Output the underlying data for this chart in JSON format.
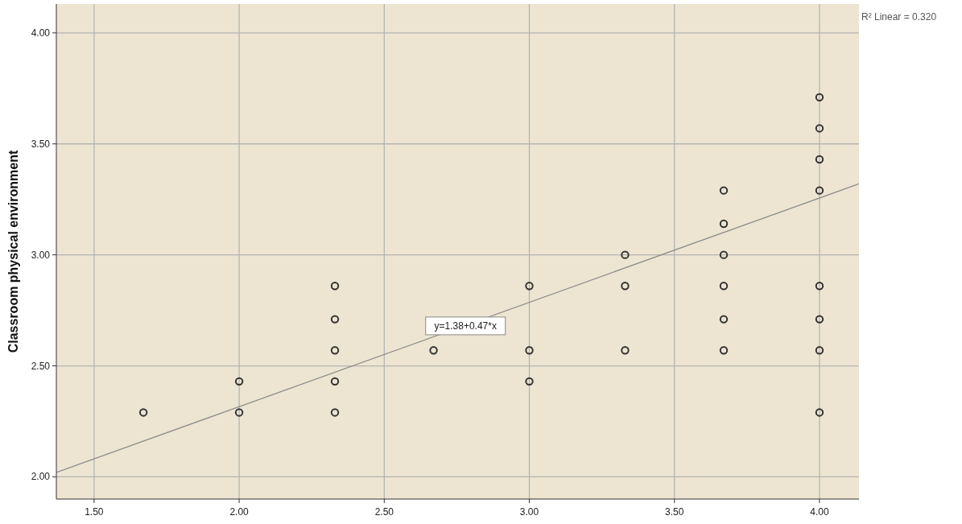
{
  "chart_data": {
    "type": "scatter",
    "ylabel": "Classroom physical environment",
    "xlim": [
      1.37,
      4.136
    ],
    "ylim": [
      1.9,
      4.13
    ],
    "xticks": [
      {
        "value": 1.5,
        "label": "1.50"
      },
      {
        "value": 2,
        "label": "2.00"
      },
      {
        "value": 2.5,
        "label": "2.50"
      },
      {
        "value": 3,
        "label": "3.00"
      },
      {
        "value": 3.5,
        "label": "3.50"
      },
      {
        "value": 4,
        "label": "4.00"
      }
    ],
    "yticks": [
      {
        "value": 2,
        "label": "2.00"
      },
      {
        "value": 2.5,
        "label": "2.50"
      },
      {
        "value": 3,
        "label": "3.00"
      },
      {
        "value": 3.5,
        "label": "3.50"
      },
      {
        "value": 4,
        "label": "4.00"
      }
    ],
    "grid": true,
    "series": [
      {
        "marker": "circle",
        "color": "#333333",
        "x": [
          1.67,
          2,
          2,
          2.33,
          2.33,
          2.33,
          2.33,
          2.33,
          2.67,
          3,
          3,
          3,
          3.33,
          3.33,
          3.33,
          3.67,
          3.67,
          3.67,
          3.67,
          3.67,
          3.67,
          4,
          4,
          4,
          4,
          4,
          4,
          4,
          4
        ],
        "values": [
          2.29,
          2.43,
          2.29,
          2.86,
          2.71,
          2.57,
          2.43,
          2.29,
          2.57,
          2.86,
          2.57,
          2.43,
          3,
          2.86,
          2.57,
          3.29,
          3.14,
          3,
          2.86,
          2.71,
          2.57,
          3.71,
          3.57,
          3.43,
          3.29,
          2.86,
          2.71,
          2.57,
          2.29
        ]
      },
      {
        "type": "line",
        "color": "#8c8c8c",
        "x": [
          1.37,
          4.136
        ],
        "values": [
          2.02,
          3.32
        ]
      }
    ],
    "annotations": [
      {
        "text": "y=1.38+0.47*x",
        "x": 2.78,
        "y": 2.68
      },
      "R² Linear = 0.320"
    ]
  }
}
